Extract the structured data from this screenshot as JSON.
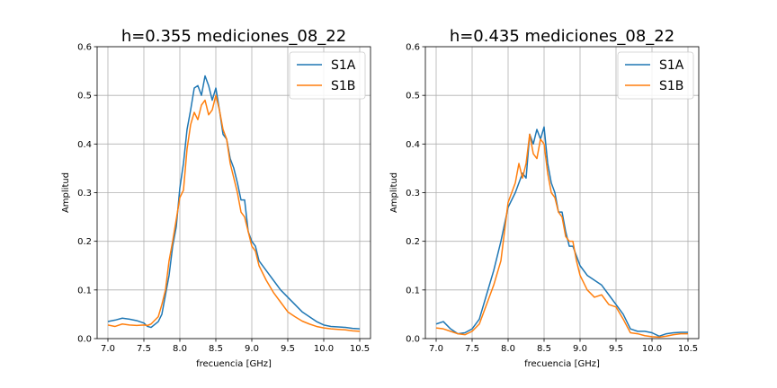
{
  "chart_data": [
    {
      "type": "line",
      "title": "h=0.355 mediciones_08_22",
      "xlabel": "frecuencia [GHz]",
      "ylabel": "Amplitud",
      "xlim": [
        6.85,
        10.65
      ],
      "ylim": [
        0,
        0.6
      ],
      "xticks": [
        "7.0",
        "7.5",
        "8.0",
        "8.5",
        "9.0",
        "9.5",
        "10.0",
        "10.5"
      ],
      "yticks": [
        "0.0",
        "0.1",
        "0.2",
        "0.3",
        "0.4",
        "0.5",
        "0.6"
      ],
      "grid": true,
      "legend": "top-right",
      "series": [
        {
          "name": "S1A",
          "color": "#1f77b4",
          "x": [
            7.0,
            7.1,
            7.2,
            7.3,
            7.4,
            7.5,
            7.55,
            7.6,
            7.7,
            7.75,
            7.8,
            7.85,
            7.9,
            7.95,
            8.0,
            8.05,
            8.1,
            8.15,
            8.2,
            8.25,
            8.3,
            8.35,
            8.4,
            8.45,
            8.5,
            8.55,
            8.6,
            8.65,
            8.7,
            8.75,
            8.8,
            8.85,
            8.9,
            8.95,
            9.0,
            9.05,
            9.1,
            9.2,
            9.3,
            9.4,
            9.5,
            9.6,
            9.7,
            9.8,
            9.9,
            10.0,
            10.1,
            10.2,
            10.3,
            10.4,
            10.5
          ],
          "y": [
            0.035,
            0.038,
            0.042,
            0.04,
            0.037,
            0.032,
            0.025,
            0.023,
            0.035,
            0.05,
            0.09,
            0.13,
            0.19,
            0.23,
            0.31,
            0.36,
            0.43,
            0.47,
            0.515,
            0.52,
            0.5,
            0.54,
            0.52,
            0.49,
            0.515,
            0.47,
            0.42,
            0.41,
            0.37,
            0.35,
            0.32,
            0.285,
            0.285,
            0.22,
            0.2,
            0.19,
            0.16,
            0.14,
            0.12,
            0.1,
            0.085,
            0.07,
            0.055,
            0.045,
            0.035,
            0.028,
            0.025,
            0.024,
            0.023,
            0.021,
            0.02
          ]
        },
        {
          "name": "S1B",
          "color": "#ff7f0e",
          "x": [
            7.0,
            7.1,
            7.2,
            7.3,
            7.4,
            7.5,
            7.55,
            7.6,
            7.7,
            7.75,
            7.8,
            7.85,
            7.9,
            7.95,
            8.0,
            8.05,
            8.1,
            8.15,
            8.2,
            8.25,
            8.3,
            8.35,
            8.4,
            8.45,
            8.5,
            8.55,
            8.6,
            8.65,
            8.7,
            8.75,
            8.8,
            8.85,
            8.9,
            8.95,
            9.0,
            9.05,
            9.1,
            9.2,
            9.3,
            9.4,
            9.5,
            9.6,
            9.7,
            9.8,
            9.9,
            10.0,
            10.1,
            10.2,
            10.3,
            10.4,
            10.5
          ],
          "y": [
            0.028,
            0.025,
            0.03,
            0.028,
            0.027,
            0.028,
            0.027,
            0.03,
            0.045,
            0.07,
            0.1,
            0.16,
            0.2,
            0.245,
            0.29,
            0.305,
            0.39,
            0.44,
            0.465,
            0.45,
            0.48,
            0.49,
            0.46,
            0.47,
            0.5,
            0.47,
            0.43,
            0.41,
            0.36,
            0.33,
            0.3,
            0.26,
            0.25,
            0.22,
            0.19,
            0.18,
            0.15,
            0.12,
            0.095,
            0.075,
            0.055,
            0.045,
            0.036,
            0.03,
            0.025,
            0.022,
            0.02,
            0.019,
            0.018,
            0.016,
            0.015
          ]
        }
      ]
    },
    {
      "type": "line",
      "title": "h=0.435 mediciones_08_22",
      "xlabel": "frecuencia [GHz]",
      "ylabel": "Amplitud",
      "xlim": [
        6.85,
        10.65
      ],
      "ylim": [
        0,
        0.6
      ],
      "xticks": [
        "7.0",
        "7.5",
        "8.0",
        "8.5",
        "9.0",
        "9.5",
        "10.0",
        "10.5"
      ],
      "yticks": [
        "0.0",
        "0.1",
        "0.2",
        "0.3",
        "0.4",
        "0.5",
        "0.6"
      ],
      "grid": true,
      "legend": "top-right",
      "series": [
        {
          "name": "S1A",
          "color": "#1f77b4",
          "x": [
            7.0,
            7.1,
            7.2,
            7.3,
            7.4,
            7.5,
            7.6,
            7.7,
            7.8,
            7.9,
            8.0,
            8.1,
            8.2,
            8.25,
            8.3,
            8.35,
            8.4,
            8.45,
            8.5,
            8.55,
            8.6,
            8.65,
            8.7,
            8.75,
            8.8,
            8.85,
            8.9,
            8.95,
            9.0,
            9.1,
            9.2,
            9.3,
            9.4,
            9.5,
            9.6,
            9.7,
            9.8,
            9.9,
            10.0,
            10.1,
            10.2,
            10.3,
            10.4,
            10.5
          ],
          "y": [
            0.03,
            0.035,
            0.02,
            0.01,
            0.012,
            0.02,
            0.04,
            0.09,
            0.14,
            0.2,
            0.27,
            0.3,
            0.34,
            0.33,
            0.42,
            0.4,
            0.43,
            0.41,
            0.435,
            0.36,
            0.32,
            0.3,
            0.26,
            0.26,
            0.22,
            0.19,
            0.19,
            0.17,
            0.15,
            0.13,
            0.12,
            0.11,
            0.09,
            0.07,
            0.05,
            0.02,
            0.015,
            0.015,
            0.012,
            0.005,
            0.01,
            0.012,
            0.013,
            0.013
          ]
        },
        {
          "name": "S1B",
          "color": "#ff7f0e",
          "x": [
            7.0,
            7.1,
            7.2,
            7.3,
            7.4,
            7.5,
            7.6,
            7.7,
            7.8,
            7.9,
            8.0,
            8.1,
            8.15,
            8.2,
            8.25,
            8.3,
            8.35,
            8.4,
            8.45,
            8.5,
            8.55,
            8.6,
            8.65,
            8.7,
            8.75,
            8.8,
            8.85,
            8.9,
            8.95,
            9.0,
            9.1,
            9.2,
            9.3,
            9.4,
            9.5,
            9.6,
            9.7,
            9.8,
            9.9,
            10.0,
            10.1,
            10.2,
            10.3,
            10.4,
            10.5
          ],
          "y": [
            0.022,
            0.02,
            0.015,
            0.01,
            0.008,
            0.015,
            0.03,
            0.07,
            0.11,
            0.16,
            0.28,
            0.32,
            0.36,
            0.33,
            0.36,
            0.42,
            0.38,
            0.37,
            0.41,
            0.4,
            0.34,
            0.3,
            0.29,
            0.26,
            0.25,
            0.21,
            0.2,
            0.2,
            0.16,
            0.13,
            0.1,
            0.085,
            0.09,
            0.07,
            0.065,
            0.04,
            0.012,
            0.01,
            0.006,
            0.004,
            0.003,
            0.005,
            0.008,
            0.01,
            0.01
          ]
        }
      ]
    }
  ]
}
